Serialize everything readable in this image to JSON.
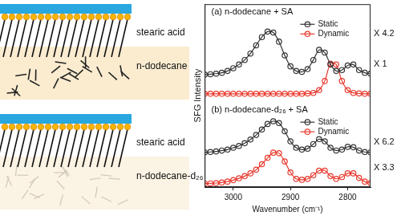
{
  "chart_data": {
    "type": "line",
    "x_label": "Wavenumber (cm⁻¹)",
    "y_label": "SFG Intensity",
    "annotations": [
      "(a) n-dodecane + SA",
      "(b) n-dodecane-d₂₆ + SA"
    ],
    "x": [
      3050,
      3040,
      3030,
      3020,
      3010,
      3000,
      2990,
      2980,
      2970,
      2960,
      2950,
      2940,
      2930,
      2920,
      2910,
      2900,
      2890,
      2880,
      2870,
      2860,
      2850,
      2840,
      2830,
      2820,
      2810,
      2800,
      2790,
      2780,
      2770,
      2760
    ],
    "series": [
      {
        "name": "Static",
        "color": "#333333",
        "marker": "circle",
        "line_style": "solid",
        "annotation": "X 4.2",
        "values": [
          6.15,
          6.17,
          6.2,
          6.25,
          6.35,
          6.5,
          6.7,
          6.95,
          7.3,
          7.75,
          8.2,
          8.5,
          8.45,
          7.95,
          7.2,
          6.6,
          6.35,
          6.3,
          6.45,
          6.95,
          7.5,
          7.35,
          6.7,
          6.35,
          6.4,
          6.65,
          6.7,
          6.4,
          6.25,
          6.2
        ]
      },
      {
        "name": "Dynamic",
        "color": "#e8392e",
        "marker": "circle",
        "line_style": "solid",
        "annotation": "X 1",
        "values": [
          5.1,
          5.1,
          5.1,
          5.1,
          5.1,
          5.1,
          5.1,
          5.1,
          5.1,
          5.1,
          5.1,
          5.1,
          5.1,
          5.1,
          5.1,
          5.1,
          5.1,
          5.1,
          5.12,
          5.15,
          5.3,
          5.8,
          6.75,
          6.7,
          5.8,
          5.3,
          5.15,
          5.12,
          5.1,
          5.1
        ]
      },
      {
        "name": "Static",
        "color": "#333333",
        "marker": "circle",
        "line_style": "solid",
        "annotation": "X 6.2",
        "values": [
          1.9,
          1.92,
          1.95,
          2.0,
          2.05,
          2.15,
          2.25,
          2.4,
          2.6,
          2.85,
          3.15,
          3.45,
          3.6,
          3.5,
          3.05,
          2.5,
          2.15,
          2.05,
          2.1,
          2.35,
          2.62,
          2.5,
          2.15,
          2.0,
          2.05,
          2.2,
          2.18,
          2.0,
          1.92,
          1.9
        ]
      },
      {
        "name": "Dynamic",
        "color": "#e8392e",
        "marker": "circle",
        "line_style": "solid",
        "annotation": "X 3.3",
        "values": [
          0.2,
          0.2,
          0.22,
          0.25,
          0.3,
          0.38,
          0.48,
          0.6,
          0.75,
          0.95,
          1.25,
          1.6,
          1.88,
          1.85,
          1.4,
          0.8,
          0.45,
          0.4,
          0.45,
          0.65,
          0.9,
          0.9,
          0.6,
          0.45,
          0.55,
          0.75,
          0.75,
          0.5,
          0.3,
          0.22
        ]
      }
    ],
    "xlim": [
      3050,
      2760
    ],
    "xticks": [
      3000,
      2900,
      2800
    ],
    "ylim": [
      0,
      10
    ],
    "yticks": [],
    "tick_labels": "x",
    "grid": false
  },
  "diagram": {
    "panels": [
      {
        "monolayer": "stearic acid",
        "subphase": "n-dodecane"
      },
      {
        "monolayer": "stearic acid",
        "subphase": "n-dodecane-d₂₆"
      }
    ]
  }
}
